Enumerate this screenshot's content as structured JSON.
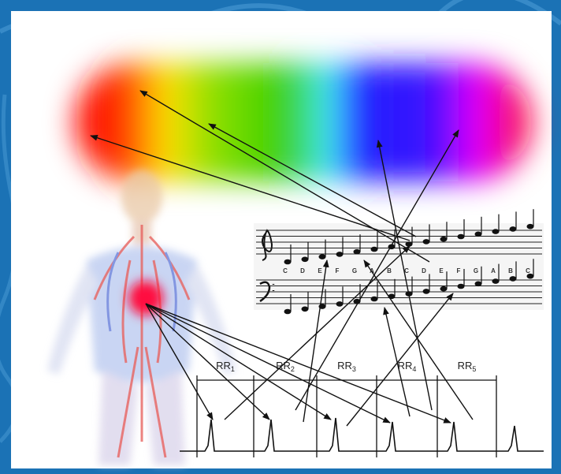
{
  "ecg": {
    "intervals": [
      {
        "name": "RR",
        "index": "1"
      },
      {
        "name": "RR",
        "index": "2"
      },
      {
        "name": "RR",
        "index": "3"
      },
      {
        "name": "RR",
        "index": "4"
      },
      {
        "name": "RR",
        "index": "5"
      }
    ]
  },
  "staff": {
    "letters": [
      "C",
      "D",
      "E",
      "F",
      "G",
      "A",
      "B",
      "C",
      "D",
      "E",
      "F",
      "G",
      "A",
      "B",
      "C"
    ]
  }
}
